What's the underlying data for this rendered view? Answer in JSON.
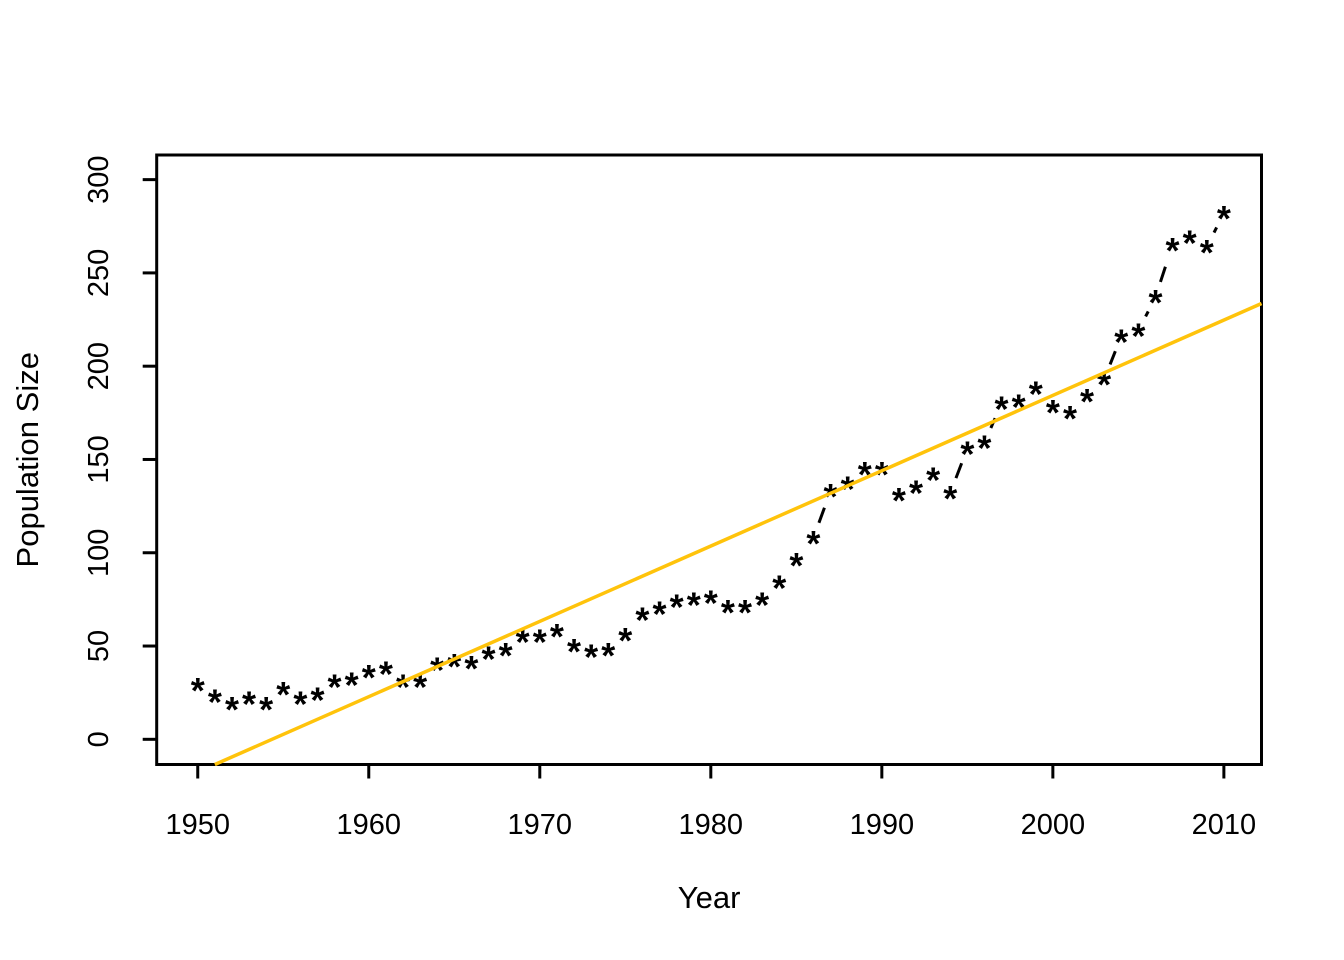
{
  "page": {
    "background": "#ffffff"
  },
  "chart_data": {
    "type": "scatter",
    "title": "",
    "xlabel": "Year",
    "ylabel": "Population Size",
    "marker": "*",
    "marker_color": "#000000",
    "connector_style": "dashed",
    "connector_color": "#000000",
    "trend_color": "#FFC30B",
    "axis_color": "#000000",
    "grid": false,
    "legend": null,
    "x_ticks": [
      1950,
      1960,
      1970,
      1980,
      1990,
      2000,
      2010
    ],
    "y_ticks": [
      0,
      50,
      100,
      150,
      200,
      250,
      300
    ],
    "xlim": [
      1947.6,
      2012.2
    ],
    "ylim": [
      -13.5,
      313.2
    ],
    "x": [
      1950,
      1951,
      1952,
      1953,
      1954,
      1955,
      1956,
      1957,
      1958,
      1959,
      1960,
      1961,
      1962,
      1963,
      1964,
      1965,
      1966,
      1967,
      1968,
      1969,
      1970,
      1971,
      1972,
      1973,
      1974,
      1975,
      1976,
      1977,
      1978,
      1979,
      1980,
      1981,
      1982,
      1983,
      1984,
      1985,
      1986,
      1987,
      1988,
      1989,
      1990,
      1991,
      1992,
      1993,
      1994,
      1995,
      1996,
      1997,
      1998,
      1999,
      2000,
      2001,
      2002,
      2003,
      2004,
      2005,
      2006,
      2007,
      2008,
      2009,
      2010
    ],
    "y": [
      29,
      23,
      19,
      22,
      19,
      27,
      22,
      24,
      31,
      32,
      36,
      38,
      31,
      31,
      40,
      42,
      41,
      46,
      48,
      55,
      55,
      58,
      50,
      47,
      48,
      56,
      67,
      70,
      74,
      75,
      76,
      71,
      71,
      75,
      84,
      96,
      108,
      133,
      137,
      145,
      145,
      131,
      135,
      142,
      132,
      156,
      159,
      180,
      181,
      188,
      178,
      175,
      184,
      193,
      216,
      219,
      237,
      265,
      269,
      264,
      282
    ],
    "trendline": {
      "x1": 1951.0,
      "y1": -13.5,
      "x2": 2012.2,
      "y2": 233.6
    }
  }
}
